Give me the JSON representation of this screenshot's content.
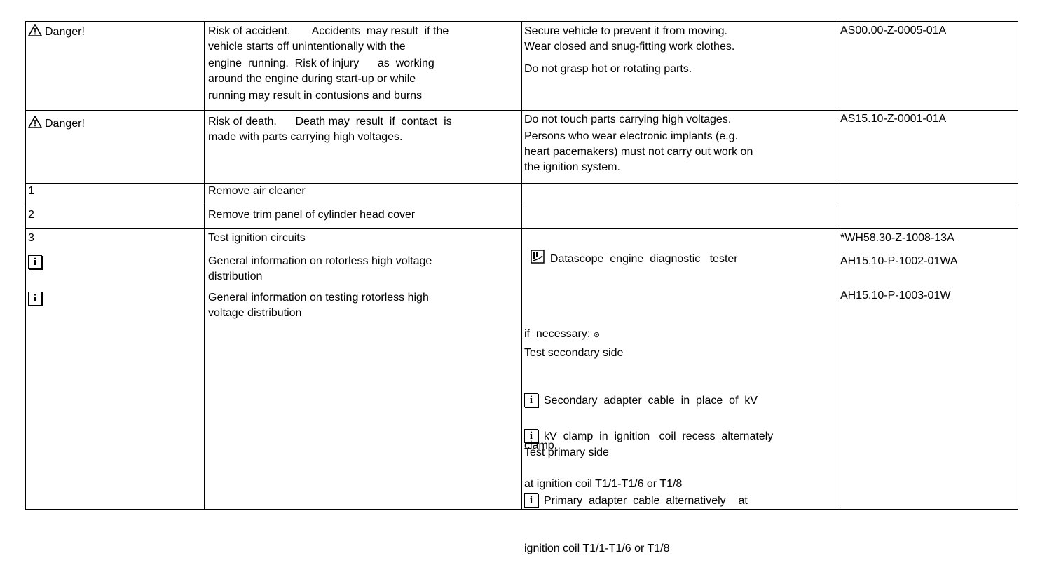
{
  "rows": [
    {
      "col1": "Danger!",
      "col2": [
        "Risk of accident.       Accidents  may result  if the",
        "vehicle starts off unintentionally with the",
        "engine  running.  Risk of injury      as  working",
        "around the engine during start-up or while",
        "running may result in contusions and burns"
      ],
      "col3": [
        "Secure vehicle to prevent it from moving.",
        "Wear closed and snug-fitting work clothes.",
        "Do not grasp hot or rotating parts."
      ],
      "col4": "AS00.00-Z-0005-01A"
    },
    {
      "col1": "Danger!",
      "col2": [
        "Risk of death.      Death may  result  if  contact  is",
        "made with parts carrying high voltages."
      ],
      "col3": [
        "Do not touch parts carrying high voltages.",
        "Persons who wear electronic implants (e.g.",
        "heart pacemakers) must not carry out work on",
        "the ignition system."
      ],
      "col4": "AS15.10-Z-0001-01A"
    },
    {
      "col1": "1",
      "col2": "Remove air cleaner"
    },
    {
      "col1": "2",
      "col2": "Remove trim panel of cylinder head cover"
    },
    {
      "col1": "3",
      "col2": "Test ignition circuits",
      "info1": [
        "General information on rotorless high voltage",
        "distribution"
      ],
      "info2": [
        "General information on testing rotorless high",
        "voltage distribution"
      ],
      "tester": "Datascope  engine  diagnostic   tester",
      "ref1": "*WH58.30-Z-1008-13A",
      "ref2": "AH15.10-P-1002-01WA",
      "ref3": "AH15.10-P-1003-01W",
      "if_necessary": "if  necessary:",
      "secondary_title": "Test secondary side",
      "secondary_1": [
        "Secondary  adapter  cable  in  place  of  kV",
        "clamp."
      ],
      "secondary_2": [
        "kV  clamp  in  ignition   coil  recess  alternately",
        "at ignition coil T1/1-T1/6 or T1/8"
      ],
      "primary_title": "Test primary side",
      "primary_1": [
        "Primary  adapter  cable  alternatively    at",
        "ignition coil T1/1-T1/6 or T1/8"
      ]
    }
  ],
  "icons": {
    "warning": "warning-triangle-icon",
    "info": "i",
    "tester": "tester-icon",
    "special": "⊘"
  }
}
